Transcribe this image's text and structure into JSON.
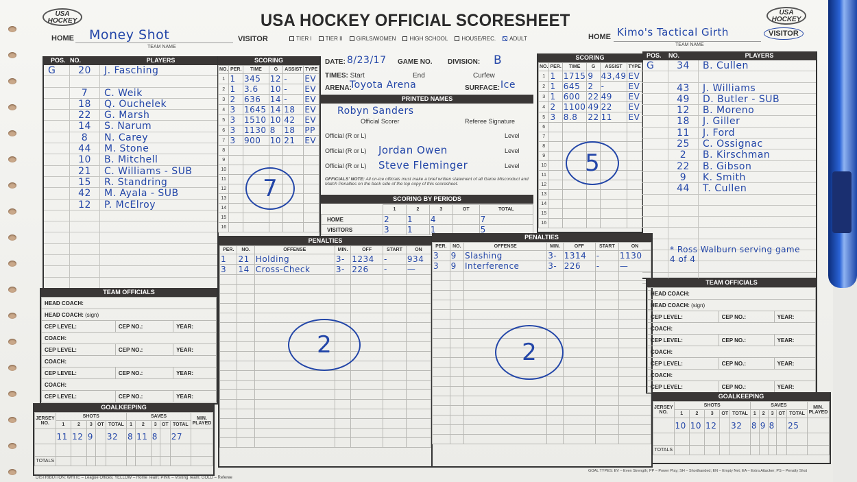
{
  "header": {
    "logo_text": "USA HOCKEY",
    "title": "USA HOCKEY OFFICIAL SCORESHEET",
    "left_team_role": "HOME",
    "left_team_name": "Money Shot",
    "team_name_caption": "TEAM NAME",
    "visitor_label": "VISITOR",
    "categories": [
      {
        "label": "TIER I",
        "checked": false
      },
      {
        "label": "TIER II",
        "checked": false
      },
      {
        "label": "GIRLS/WOMEN",
        "checked": false
      },
      {
        "label": "HIGH SCHOOL",
        "checked": false
      },
      {
        "label": "HOUSE/REC.",
        "checked": false
      },
      {
        "label": "ADULT",
        "checked": true
      }
    ],
    "right_team_role": "HOME",
    "right_team_name": "Kimo's Tactical Girth",
    "right_team_circled": "VISITOR"
  },
  "home": {
    "roster_headers": {
      "pos": "POS.",
      "no": "NO.",
      "players": "PLAYERS"
    },
    "roster": [
      {
        "pos": "G",
        "no": "20",
        "name": "J. Fasching"
      },
      {
        "pos": "",
        "no": "",
        "name": ""
      },
      {
        "pos": "",
        "no": "7",
        "name": "C. Weik"
      },
      {
        "pos": "",
        "no": "18",
        "name": "Q. Ouchelek"
      },
      {
        "pos": "",
        "no": "22",
        "name": "G. Marsh"
      },
      {
        "pos": "",
        "no": "14",
        "name": "S. Narum"
      },
      {
        "pos": "",
        "no": "8",
        "name": "N. Carey"
      },
      {
        "pos": "",
        "no": "44",
        "name": "M. Stone"
      },
      {
        "pos": "",
        "no": "10",
        "name": "B. Mitchell"
      },
      {
        "pos": "",
        "no": "21",
        "name": "C. Williams - SUB"
      },
      {
        "pos": "",
        "no": "15",
        "name": "R. Standring"
      },
      {
        "pos": "",
        "no": "42",
        "name": "M. Ayala - SUB"
      },
      {
        "pos": "",
        "no": "12",
        "name": "P. McElroy"
      }
    ],
    "scoring_title": "SCORING",
    "scoring_headers": [
      "NO.",
      "PER.",
      "TIME",
      "G",
      "ASSIST",
      "TYPE"
    ],
    "goals": [
      {
        "per": "1",
        "time": "345",
        "g": "12",
        "assist": "-",
        "type": "EV"
      },
      {
        "per": "1",
        "time": "3.6",
        "g": "10",
        "assist": "-",
        "type": "EV"
      },
      {
        "per": "2",
        "time": "636",
        "g": "14",
        "assist": "-",
        "type": "EV"
      },
      {
        "per": "3",
        "time": "1645",
        "g": "14",
        "assist": "18",
        "type": "EV"
      },
      {
        "per": "3",
        "time": "1510",
        "g": "10",
        "assist": "42",
        "type": "EV"
      },
      {
        "per": "3",
        "time": "1130",
        "g": "8",
        "assist": "18",
        "type": "PP"
      },
      {
        "per": "3",
        "time": "900",
        "g": "10",
        "assist": "21",
        "type": "EV"
      }
    ],
    "goal_total_circled": "7",
    "penalties_title": "PENALTIES",
    "penalty_headers": [
      "PER.",
      "NO.",
      "OFFENSE",
      "MIN.",
      "OFF",
      "START",
      "ON"
    ],
    "penalties": [
      {
        "per": "1",
        "no": "21",
        "offense": "Holding",
        "min": "3-",
        "off": "1234",
        "start": "-",
        "on": "934"
      },
      {
        "per": "3",
        "no": "14",
        "offense": "Cross-Check",
        "min": "3-",
        "off": "226",
        "start": "-",
        "on": "—"
      }
    ],
    "penalty_total_circled": "2",
    "team_officials_title": "TEAM OFFICIALS",
    "goalkeeping": {
      "jersey": "",
      "shots": [
        "11",
        "12",
        "9",
        "",
        "32"
      ],
      "saves": [
        "8",
        "11",
        "8",
        "",
        "27"
      ],
      "min_played": ""
    }
  },
  "visitor": {
    "roster": [
      {
        "pos": "G",
        "no": "34",
        "name": "B. Cullen"
      },
      {
        "pos": "",
        "no": "",
        "name": ""
      },
      {
        "pos": "",
        "no": "43",
        "name": "J. Williams"
      },
      {
        "pos": "",
        "no": "49",
        "name": "D. Butler - SUB"
      },
      {
        "pos": "",
        "no": "12",
        "name": "B. Moreno"
      },
      {
        "pos": "",
        "no": "18",
        "name": "J. Giller"
      },
      {
        "pos": "",
        "no": "11",
        "name": "J. Ford"
      },
      {
        "pos": "",
        "no": "25",
        "name": "C. Ossignac"
      },
      {
        "pos": "",
        "no": "2",
        "name": "B. Kirschman"
      },
      {
        "pos": "",
        "no": "22",
        "name": "B. Gibson"
      },
      {
        "pos": "",
        "no": "9",
        "name": "K. Smith"
      },
      {
        "pos": "",
        "no": "44",
        "name": "T. Cullen"
      }
    ],
    "goals": [
      {
        "per": "1",
        "time": "1715",
        "g": "9",
        "assist": "43,49",
        "type": "EV"
      },
      {
        "per": "1",
        "time": "645",
        "g": "2",
        "assist": "-",
        "type": "EV"
      },
      {
        "per": "1",
        "time": "600",
        "g": "22",
        "assist": "49",
        "type": "EV"
      },
      {
        "per": "2",
        "time": "1100",
        "g": "49",
        "assist": "22",
        "type": "EV"
      },
      {
        "per": "3",
        "time": "8.8",
        "g": "22",
        "assist": "11",
        "type": "EV"
      }
    ],
    "goal_total_circled": "5",
    "penalties": [
      {
        "per": "3",
        "no": "9",
        "offense": "Slashing",
        "min": "3-",
        "off": "1314",
        "start": "-",
        "on": "1130"
      },
      {
        "per": "3",
        "no": "9",
        "offense": "Interference",
        "min": "3-",
        "off": "226",
        "start": "-",
        "on": "—"
      }
    ],
    "penalty_total_circled": "2",
    "note": "* Ross Walburn serving game 4 of 4",
    "goalkeeping": {
      "jersey": "",
      "shots": [
        "10",
        "10",
        "12",
        "",
        "32"
      ],
      "saves": [
        "8",
        "9",
        "8",
        "",
        "25"
      ],
      "min_played": ""
    }
  },
  "game_info": {
    "date_label": "DATE:",
    "date": "8/23/17",
    "game_no_label": "GAME NO.",
    "game_no": "",
    "division_label": "DIVISION:",
    "division": "B",
    "times_label": "TIMES:",
    "start_label": "Start",
    "end_label": "End",
    "curfew_label": "Curfew",
    "arena_label": "ARENA:",
    "arena": "Toyota Arena",
    "surface_label": "SURFACE:",
    "surface": "Ice",
    "printed_names_title": "PRINTED NAMES",
    "official_scorer_label": "Official Scorer",
    "official_scorer": "Robyn Sanders",
    "referee_signature_label": "Referee Signature",
    "official_label": "Official (R or L)",
    "level_label": "Level",
    "officials": [
      "",
      "Jordan Owen",
      "Steve Fleminger"
    ],
    "note_bold": "OFFICIALS' NOTE:",
    "note": "All on-ice officials must make a brief written statement of all Game Misconduct and Match Penalties on the back side of the top copy of this scoresheet.",
    "periods_title": "SCORING BY PERIODS",
    "period_headers": [
      "1",
      "2",
      "3",
      "OT",
      "TOTAL"
    ],
    "home_label": "HOME",
    "home_periods": [
      "2",
      "1",
      "4",
      "",
      "7"
    ],
    "visitors_label": "VISITORS",
    "visitor_periods": [
      "3",
      "1",
      "1",
      "",
      "5"
    ]
  },
  "officials_form": {
    "head_coach": "HEAD COACH:",
    "head_coach_sign": "HEAD COACH:",
    "sign": "(sign)",
    "cep_level": "CEP LEVEL:",
    "cep_no": "CEP NO.:",
    "year": "YEAR:",
    "coach": "COACH:"
  },
  "goalkeeping_labels": {
    "title": "GOALKEEPING",
    "jersey": "JERSEY NO.",
    "shots": "SHOTS",
    "saves": "SAVES",
    "cols": [
      "1",
      "2",
      "3",
      "OT",
      "TOTAL"
    ],
    "min": "MIN. PLAYED",
    "totals": "TOTALS"
  },
  "footer": {
    "distribution": "DISTRIBUTION: WHITE – League Offices; YELLOW – Home Team; PINK – Visiting Team; GOLD – Referee",
    "goal_types": "GOAL TYPES: EV – Even Strength; PP – Power Play; SH – Shorthanded; EN – Empty Net; EA – Extra Attacker; PS – Penalty Shot"
  },
  "colors": {
    "ink": "#2346a8",
    "header_bar": "#3a3736",
    "paper": "#f4f4f1"
  }
}
